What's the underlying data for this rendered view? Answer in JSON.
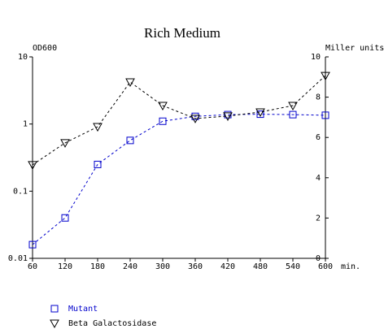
{
  "chart_data": {
    "type": "line",
    "title": "Rich Medium",
    "ylabel": "OD600",
    "y2label": "Miller units",
    "xlabel": "min.",
    "x": [
      60,
      120,
      180,
      240,
      300,
      360,
      420,
      480,
      540,
      600
    ],
    "xlim": [
      60,
      600
    ],
    "xticks": [
      60,
      120,
      180,
      240,
      300,
      360,
      420,
      480,
      540,
      600
    ],
    "ylim": [
      0.01,
      10
    ],
    "yticks": [
      0.01,
      0.1,
      1,
      10
    ],
    "ylog": true,
    "y2lim": [
      0,
      10
    ],
    "y2ticks": [
      0,
      2,
      4,
      6,
      8,
      10
    ],
    "series": [
      {
        "name": "Mutant",
        "color": "#0000cc",
        "marker": "square",
        "values": [
          0.016,
          0.04,
          0.25,
          0.57,
          1.1,
          1.3,
          1.38,
          1.4,
          1.38,
          1.35
        ]
      },
      {
        "name": "Beta Galactosidase",
        "color": "#000000",
        "marker": "triangle-down",
        "axis": "y2",
        "values": [
          4.64,
          5.73,
          6.53,
          8.75,
          7.58,
          6.94,
          7.06,
          7.26,
          7.58,
          9.07
        ]
      }
    ]
  }
}
